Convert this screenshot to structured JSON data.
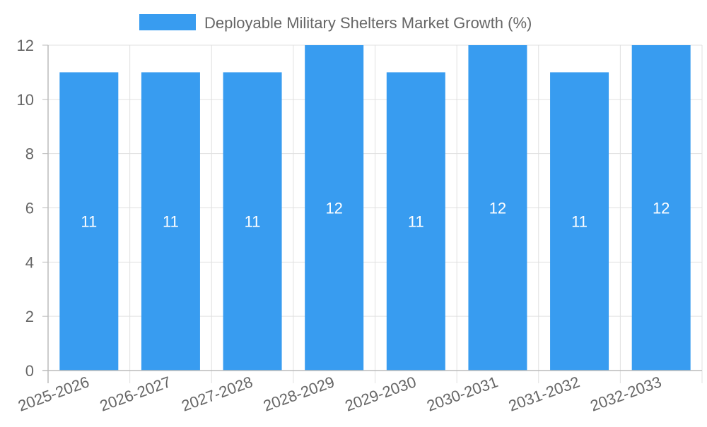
{
  "chart_data": {
    "type": "bar",
    "title": "",
    "legend": [
      {
        "label": "Deployable Military Shelters Market Growth (%)",
        "color": "#389cf0"
      }
    ],
    "legend_placement": "top-center",
    "categories": [
      "2025-2026",
      "2026-2027",
      "2027-2028",
      "2028-2029",
      "2029-2030",
      "2030-2031",
      "2031-2032",
      "2032-2033"
    ],
    "series": [
      {
        "name": "Deployable Military Shelters Market Growth (%)",
        "values": [
          11,
          11,
          11,
          12,
          11,
          12,
          11,
          12
        ],
        "color": "#389cf0"
      }
    ],
    "data_labels": [
      "11",
      "11",
      "11",
      "12",
      "11",
      "12",
      "11",
      "12"
    ],
    "xlabel": "",
    "ylabel": "",
    "ylim": [
      0,
      12
    ],
    "yticks": [
      "0",
      "2",
      "4",
      "6",
      "8",
      "10",
      "12"
    ],
    "grid": true
  }
}
